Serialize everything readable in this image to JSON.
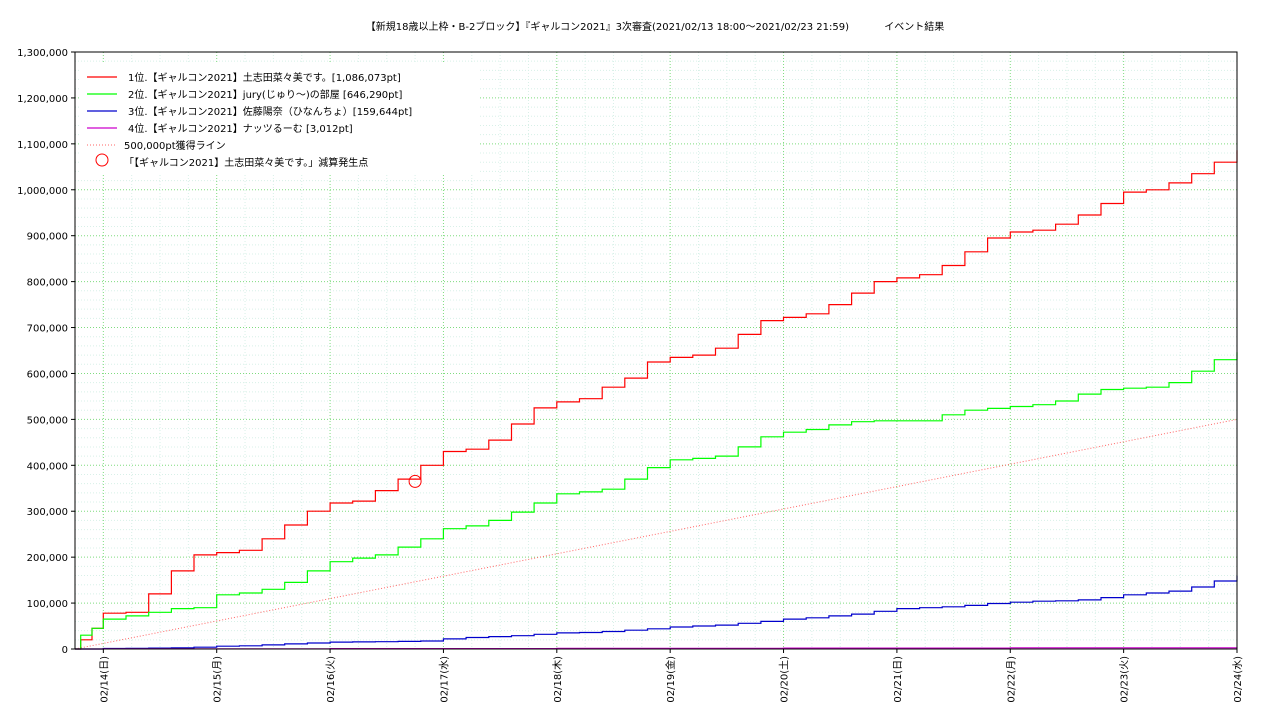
{
  "chart_data": {
    "type": "line",
    "title": "【新規18歳以上枠・B-2ブロック】『ギャルコン2021』3次審査(2021/02/13 18:00～2021/02/23 21:59)",
    "subtitle": "イベント結果",
    "xlabel": "",
    "ylabel": "",
    "x_ticks": [
      "02/14(日)",
      "02/15(月)",
      "02/16(火)",
      "02/17(水)",
      "02/18(木)",
      "02/19(金)",
      "02/20(土)",
      "02/21(日)",
      "02/22(月)",
      "02/23(火)",
      "02/24(水)"
    ],
    "y_ticks": [
      "0",
      "100,000",
      "200,000",
      "300,000",
      "400,000",
      "500,000",
      "600,000",
      "700,000",
      "800,000",
      "900,000",
      "1,000,000",
      "1,100,000",
      "1,200,000",
      "1,300,000"
    ],
    "ylim": [
      0,
      1300000
    ],
    "xlim_days": [
      -0.25,
      10
    ],
    "grid": true,
    "legend_position": "top-left",
    "series": [
      {
        "name": "1位.【ギャルコン2021】土志田菜々美です。[1,086,073pt]",
        "color": "#ff0000",
        "x": [
          -0.25,
          -0.2,
          -0.1,
          0,
          0.2,
          0.4,
          0.6,
          0.8,
          1.0,
          1.2,
          1.4,
          1.6,
          1.8,
          2.0,
          2.2,
          2.4,
          2.6,
          2.8,
          3.0,
          3.2,
          3.4,
          3.6,
          3.8,
          4.0,
          4.2,
          4.4,
          4.6,
          4.8,
          5.0,
          5.2,
          5.4,
          5.6,
          5.8,
          6.0,
          6.2,
          6.4,
          6.6,
          6.8,
          7.0,
          7.2,
          7.4,
          7.6,
          7.8,
          8.0,
          8.2,
          8.4,
          8.6,
          8.8,
          9.0,
          9.2,
          9.4,
          9.6,
          9.8,
          10.0
        ],
        "y": [
          0,
          20000,
          45000,
          78000,
          80000,
          120000,
          170000,
          205000,
          210000,
          215000,
          240000,
          270000,
          300000,
          318000,
          322000,
          345000,
          370000,
          400000,
          430000,
          435000,
          455000,
          490000,
          525000,
          538000,
          545000,
          570000,
          590000,
          625000,
          635000,
          640000,
          655000,
          685000,
          715000,
          722000,
          730000,
          750000,
          775000,
          800000,
          808000,
          815000,
          835000,
          865000,
          895000,
          908000,
          912000,
          925000,
          945000,
          970000,
          995000,
          1000000,
          1015000,
          1035000,
          1060000,
          1086073
        ]
      },
      {
        "name": "2位.【ギャルコン2021】jury(じゅり〜)の部屋 [646,290pt]",
        "color": "#00ff00",
        "x": [
          -0.25,
          -0.2,
          -0.1,
          0,
          0.2,
          0.4,
          0.6,
          0.8,
          1.0,
          1.2,
          1.4,
          1.6,
          1.8,
          2.0,
          2.2,
          2.4,
          2.6,
          2.8,
          3.0,
          3.2,
          3.4,
          3.6,
          3.8,
          4.0,
          4.2,
          4.4,
          4.6,
          4.8,
          5.0,
          5.2,
          5.4,
          5.6,
          5.8,
          6.0,
          6.2,
          6.4,
          6.6,
          6.8,
          7.0,
          7.2,
          7.4,
          7.6,
          7.8,
          8.0,
          8.2,
          8.4,
          8.6,
          8.8,
          9.0,
          9.2,
          9.4,
          9.6,
          9.8,
          10.0
        ],
        "y": [
          0,
          30000,
          45000,
          65000,
          72000,
          80000,
          88000,
          90000,
          118000,
          122000,
          130000,
          145000,
          170000,
          190000,
          198000,
          205000,
          222000,
          240000,
          262000,
          268000,
          280000,
          298000,
          318000,
          338000,
          342000,
          348000,
          370000,
          395000,
          412000,
          415000,
          420000,
          440000,
          462000,
          472000,
          478000,
          488000,
          495000,
          497000,
          497000,
          497000,
          510000,
          520000,
          524000,
          528000,
          532000,
          540000,
          555000,
          565000,
          568000,
          570000,
          580000,
          605000,
          630000,
          646290
        ]
      },
      {
        "name": "3位.【ギャルコン2021】佐藤陽奈（ひなんちょ）[159,644pt]",
        "color": "#0000cc",
        "x": [
          -0.25,
          -0.1,
          0,
          0.2,
          0.4,
          0.6,
          0.8,
          1.0,
          1.2,
          1.4,
          1.6,
          1.8,
          2.0,
          2.2,
          2.4,
          2.6,
          2.8,
          3.0,
          3.2,
          3.4,
          3.6,
          3.8,
          4.0,
          4.2,
          4.4,
          4.6,
          4.8,
          5.0,
          5.2,
          5.4,
          5.6,
          5.8,
          6.0,
          6.2,
          6.4,
          6.6,
          6.8,
          7.0,
          7.2,
          7.4,
          7.6,
          7.8,
          8.0,
          8.2,
          8.4,
          8.6,
          8.8,
          9.0,
          9.2,
          9.4,
          9.6,
          9.8,
          10.0
        ],
        "y": [
          0,
          0,
          1000,
          1500,
          2000,
          2500,
          4000,
          6000,
          7000,
          9000,
          11000,
          13000,
          15000,
          15500,
          16000,
          16500,
          17500,
          22000,
          25000,
          27000,
          29000,
          32000,
          35000,
          36000,
          38000,
          41000,
          44000,
          48000,
          50000,
          52000,
          56000,
          60000,
          65000,
          68000,
          72000,
          76000,
          82000,
          88000,
          90000,
          92000,
          95000,
          99000,
          102000,
          104000,
          105000,
          107000,
          112000,
          118000,
          122000,
          126000,
          135000,
          148000,
          159644
        ]
      },
      {
        "name": "4位.【ギャルコン2021】ナッツるーむ [3,012pt]",
        "color": "#cc00cc",
        "x": [
          -0.25,
          0,
          2,
          4,
          6,
          8,
          10
        ],
        "y": [
          0,
          200,
          800,
          1400,
          2000,
          2600,
          3012
        ]
      }
    ],
    "reference_line": {
      "name": "500,000pt獲得ライン",
      "color": "#ff6666",
      "x": [
        -0.25,
        10
      ],
      "y": [
        0,
        500000
      ]
    },
    "markers": {
      "name": "「【ギャルコン2021】土志田菜々美です。」減算発生点",
      "color": "#ff0000",
      "points": [
        {
          "x": 2.75,
          "y": 365000
        }
      ]
    }
  }
}
